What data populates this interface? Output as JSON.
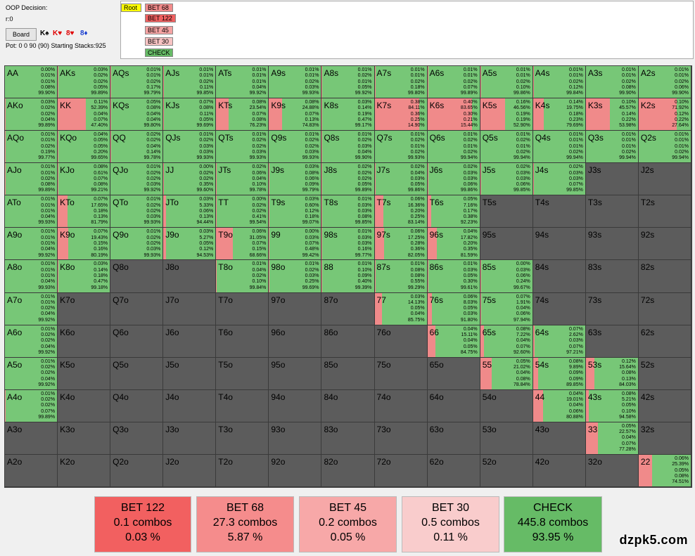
{
  "info": {
    "decision_label": "OOP Decision:",
    "node_label": "r:0",
    "board_button": "Board",
    "board_cards": [
      {
        "text": "K♠",
        "color": "#000000"
      },
      {
        "text": "K♥",
        "color": "#e00000"
      },
      {
        "text": "8♥",
        "color": "#e00000"
      },
      {
        "text": "8♦",
        "color": "#1a3fd0"
      }
    ],
    "pot_line": "Pot: 0 0 90 (90) Starting Stacks:925"
  },
  "tree": [
    {
      "label": "Root",
      "bg": "#ffff00"
    },
    {
      "label": "BET 68",
      "bg": "#f28b8b"
    },
    {
      "label": "BET 122",
      "bg": "#f06060"
    },
    {
      "label": "BET 45",
      "bg": "#f5a3a3"
    },
    {
      "label": "BET 30",
      "bg": "#f8c4c4"
    },
    {
      "label": "CHECK",
      "bg": "#66bb66"
    }
  ],
  "colors": {
    "check": "#77c777",
    "bet68": "#f08a8a",
    "inactive": "#5c5c5c"
  },
  "grid_hands": [
    [
      "AA",
      "AKs",
      "AQs",
      "AJs",
      "ATs",
      "A9s",
      "A8s",
      "A7s",
      "A6s",
      "A5s",
      "A4s",
      "A3s",
      "A2s"
    ],
    [
      "AKo",
      "KK",
      "KQs",
      "KJs",
      "KTs",
      "K9s",
      "K8s",
      "K7s",
      "K6s",
      "K5s",
      "K4s",
      "K3s",
      "K2s"
    ],
    [
      "AQo",
      "KQo",
      "QQ",
      "QJs",
      "QTs",
      "Q9s",
      "Q8s",
      "Q7s",
      "Q6s",
      "Q5s",
      "Q4s",
      "Q3s",
      "Q2s"
    ],
    [
      "AJo",
      "KJo",
      "QJo",
      "JJ",
      "JTs",
      "J9s",
      "J8s",
      "J7s",
      "J6s",
      "J5s",
      "J4s",
      "J3s",
      "J2s"
    ],
    [
      "ATo",
      "KTo",
      "QTo",
      "JTo",
      "TT",
      "T9s",
      "T8s",
      "T7s",
      "T6s",
      "T5s",
      "T4s",
      "T3s",
      "T2s"
    ],
    [
      "A9o",
      "K9o",
      "Q9o",
      "J9o",
      "T9o",
      "99",
      "98s",
      "97s",
      "96s",
      "95s",
      "94s",
      "93s",
      "92s"
    ],
    [
      "A8o",
      "K8o",
      "Q8o",
      "J8o",
      "T8o",
      "98o",
      "88",
      "87s",
      "86s",
      "85s",
      "84s",
      "83s",
      "82s"
    ],
    [
      "A7o",
      "K7o",
      "Q7o",
      "J7o",
      "T7o",
      "97o",
      "87o",
      "77",
      "76s",
      "75s",
      "74s",
      "73s",
      "72s"
    ],
    [
      "A6o",
      "K6o",
      "Q6o",
      "J6o",
      "T6o",
      "96o",
      "86o",
      "76o",
      "66",
      "65s",
      "64s",
      "63s",
      "62s"
    ],
    [
      "A5o",
      "K5o",
      "Q5o",
      "J5o",
      "T5o",
      "95o",
      "85o",
      "75o",
      "65o",
      "55",
      "54s",
      "53s",
      "52s"
    ],
    [
      "A4o",
      "K4o",
      "Q4o",
      "J4o",
      "T4o",
      "94o",
      "84o",
      "74o",
      "64o",
      "54o",
      "44",
      "43s",
      "42s"
    ],
    [
      "A3o",
      "K3o",
      "Q3o",
      "J3o",
      "T3o",
      "93o",
      "83o",
      "73o",
      "63o",
      "53o",
      "43o",
      "33",
      "32s"
    ],
    [
      "A2o",
      "K2o",
      "Q2o",
      "J2o",
      "T2o",
      "92o",
      "82o",
      "72o",
      "62o",
      "52o",
      "42o",
      "32o",
      "22"
    ]
  ],
  "hand_stats": {
    "AA": {
      "stats": [
        "0.00%",
        "0.01%",
        "0.01%",
        "0.08%",
        "99.90%"
      ],
      "check": 0.999
    },
    "AKs": {
      "stats": [
        "0.03%",
        "0.02%",
        "0.02%",
        "0.05%",
        "99.89%"
      ],
      "check": 0.9989
    },
    "AQs": {
      "stats": [
        "0.01%",
        "0.01%",
        "0.02%",
        "0.17%",
        "99.79%"
      ],
      "check": 0.9979
    },
    "AJs": {
      "stats": [
        "0.01%",
        "0.01%",
        "0.02%",
        "0.11%",
        "99.85%"
      ],
      "check": 0.9985
    },
    "ATs": {
      "stats": [
        "0.01%",
        "0.01%",
        "0.01%",
        "0.04%",
        "99.92%"
      ],
      "check": 0.9992
    },
    "A9s": {
      "stats": [
        "0.01%",
        "0.01%",
        "0.02%",
        "0.03%",
        "99.93%"
      ],
      "check": 0.9993
    },
    "A8s": {
      "stats": [
        "0.01%",
        "0.02%",
        "0.01%",
        "0.05%",
        "99.92%"
      ],
      "check": 0.9992
    },
    "A7s": {
      "stats": [
        "0.01%",
        "0.01%",
        "0.02%",
        "0.18%",
        "99.80%"
      ],
      "check": 0.998
    },
    "A6s": {
      "stats": [
        "0.01%",
        "0.01%",
        "0.02%",
        "0.07%",
        "99.89%"
      ],
      "check": 0.9989
    },
    "A5s": {
      "stats": [
        "0.01%",
        "0.01%",
        "0.02%",
        "0.10%",
        "99.86%"
      ],
      "check": 0.9986
    },
    "A4s": {
      "stats": [
        "0.01%",
        "0.01%",
        "0.02%",
        "0.12%",
        "99.84%"
      ],
      "check": 0.9984
    },
    "A3s": {
      "stats": [
        "0.01%",
        "0.01%",
        "0.02%",
        "0.08%",
        "99.90%"
      ],
      "check": 0.999
    },
    "A2s": {
      "stats": [
        "0.01%",
        "0.01%",
        "0.02%",
        "0.06%",
        "99.90%"
      ],
      "check": 0.999
    },
    "AKo": {
      "stats": [
        "0.03%",
        "0.02%",
        "0.02%",
        "0.04%",
        "99.89%"
      ],
      "check": 0.9989
    },
    "KK": {
      "stats": [
        "0.11%",
        "52.39%",
        "0.04%",
        "0.07%",
        "47.40%"
      ],
      "check": 0.474
    },
    "KQs": {
      "stats": [
        "0.05%",
        "0.08%",
        "0.04%",
        "0.04%",
        "99.80%"
      ],
      "check": 0.998
    },
    "KJs": {
      "stats": [
        "0.07%",
        "0.08%",
        "0.11%",
        "0.05%",
        "99.69%"
      ],
      "check": 0.9969
    },
    "KTs": {
      "stats": [
        "0.08%",
        "23.54%",
        "0.07%",
        "0.08%",
        "76.23%"
      ],
      "check": 0.7623
    },
    "K9s": {
      "stats": [
        "0.08%",
        "24.88%",
        "0.07%",
        "0.13%",
        "74.83%"
      ],
      "check": 0.7483
    },
    "K8s": {
      "stats": [
        "0.03%",
        "0.14%",
        "0.19%",
        "0.47%",
        "99.17%"
      ],
      "check": 0.9917
    },
    "K7s": {
      "stats": [
        "0.38%",
        "84.11%",
        "0.36%",
        "0.25%",
        "14.90%"
      ],
      "check": 0.149
    },
    "K6s": {
      "stats": [
        "0.40%",
        "83.65%",
        "0.30%",
        "0.21%",
        "15.44%"
      ],
      "check": 0.1544
    },
    "K5s": {
      "stats": [
        "0.16%",
        "46.56%",
        "0.19%",
        "0.19%",
        "52.90%"
      ],
      "check": 0.529
    },
    "K4s": {
      "stats": [
        "0.14%",
        "19.75%",
        "0.18%",
        "0.23%",
        "79.69%"
      ],
      "check": 0.7969
    },
    "K3s": {
      "stats": [
        "0.10%",
        "45.57%",
        "0.14%",
        "0.22%",
        "53.98%"
      ],
      "check": 0.5398
    },
    "K2s": {
      "stats": [
        "0.10%",
        "71.92%",
        "0.12%",
        "0.22%",
        "27.64%"
      ],
      "check": 0.2764
    },
    "AQo": {
      "stats": [
        "0.01%",
        "0.01%",
        "0.02%",
        "0.19%",
        "99.77%"
      ],
      "check": 0.9977
    },
    "KQo": {
      "stats": [
        "0.04%",
        "0.05%",
        "0.05%",
        "0.20%",
        "99.65%"
      ],
      "check": 0.9965
    },
    "QQ": {
      "stats": [
        "0.02%",
        "0.02%",
        "0.04%",
        "0.14%",
        "99.78%"
      ],
      "check": 0.9978
    },
    "QJs": {
      "stats": [
        "0.01%",
        "0.02%",
        "0.03%",
        "0.03%",
        "99.93%"
      ],
      "check": 0.9993
    },
    "QTs": {
      "stats": [
        "0.01%",
        "0.02%",
        "0.02%",
        "0.03%",
        "99.93%"
      ],
      "check": 0.9993
    },
    "Q9s": {
      "stats": [
        "0.01%",
        "0.02%",
        "0.02%",
        "0.03%",
        "99.93%"
      ],
      "check": 0.9993
    },
    "Q8s": {
      "stats": [
        "0.01%",
        "0.02%",
        "0.03%",
        "0.04%",
        "99.90%"
      ],
      "check": 0.999
    },
    "Q7s": {
      "stats": [
        "0.01%",
        "0.02%",
        "0.01%",
        "0.02%",
        "99.93%"
      ],
      "check": 0.9993
    },
    "Q6s": {
      "stats": [
        "0.01%",
        "0.02%",
        "0.01%",
        "0.02%",
        "99.94%"
      ],
      "check": 0.9994
    },
    "Q5s": {
      "stats": [
        "0.01%",
        "0.02%",
        "0.01%",
        "0.02%",
        "99.94%"
      ],
      "check": 0.9994
    },
    "Q4s": {
      "stats": [
        "0.01%",
        "0.01%",
        "0.01%",
        "0.02%",
        "99.94%"
      ],
      "check": 0.9994
    },
    "Q3s": {
      "stats": [
        "0.01%",
        "0.01%",
        "0.01%",
        "0.02%",
        "99.94%"
      ],
      "check": 0.9994
    },
    "Q2s": {
      "stats": [
        "0.01%",
        "0.01%",
        "0.01%",
        "0.02%",
        "99.94%"
      ],
      "check": 0.9994
    },
    "AJo": {
      "stats": [
        "0.01%",
        "0.01%",
        "0.02%",
        "0.08%",
        "99.89%"
      ],
      "check": 0.9989
    },
    "KJo": {
      "stats": [
        "0.08%",
        "0.61%",
        "0.07%",
        "0.08%",
        "99.21%"
      ],
      "check": 0.9921
    },
    "QJo": {
      "stats": [
        "0.01%",
        "0.02%",
        "0.02%",
        "0.03%",
        "99.92%"
      ],
      "check": 0.9992
    },
    "JJ": {
      "stats": [
        "0.00%",
        "0.02%",
        "0.02%",
        "0.35%",
        "99.60%"
      ],
      "check": 0.996
    },
    "JTs": {
      "stats": [
        "0.02%",
        "0.06%",
        "0.04%",
        "0.10%",
        "99.78%"
      ],
      "check": 0.9978
    },
    "J9s": {
      "stats": [
        "0.03%",
        "0.08%",
        "0.06%",
        "0.09%",
        "99.79%"
      ],
      "check": 0.9979
    },
    "J8s": {
      "stats": [
        "0.02%",
        "0.02%",
        "0.02%",
        "0.05%",
        "99.89%"
      ],
      "check": 0.9989
    },
    "J7s": {
      "stats": [
        "0.02%",
        "0.04%",
        "0.03%",
        "0.05%",
        "99.86%"
      ],
      "check": 0.9986
    },
    "J6s": {
      "stats": [
        "0.02%",
        "0.03%",
        "0.03%",
        "0.06%",
        "99.86%"
      ],
      "check": 0.9986
    },
    "J5s": {
      "stats": [
        "0.02%",
        "0.03%",
        "0.03%",
        "0.06%",
        "99.85%"
      ],
      "check": 0.9985
    },
    "J4s": {
      "stats": [
        "0.02%",
        "0.03%",
        "0.03%",
        "0.07%",
        "99.85%"
      ],
      "check": 0.9985
    },
    "ATo": {
      "stats": [
        "0.01%",
        "0.01%",
        "0.01%",
        "0.04%",
        "99.93%"
      ],
      "check": 0.9993
    },
    "KTo": {
      "stats": [
        "0.07%",
        "17.65%",
        "0.18%",
        "0.13%",
        "81.79%"
      ],
      "check": 0.8179
    },
    "QTo": {
      "stats": [
        "0.01%",
        "0.02%",
        "0.02%",
        "0.03%",
        "99.93%"
      ],
      "check": 0.9993
    },
    "JTo": {
      "stats": [
        "0.03%",
        "5.33%",
        "0.06%",
        "0.13%",
        "94.44%"
      ],
      "check": 0.9444
    },
    "TT": {
      "stats": [
        "0.00%",
        "0.02%",
        "0.02%",
        "0.41%",
        "99.54%"
      ],
      "check": 0.9954
    },
    "T9s": {
      "stats": [
        "0.03%",
        "0.60%",
        "0.12%",
        "0.18%",
        "99.07%"
      ],
      "check": 0.9907
    },
    "T8s": {
      "stats": [
        "0.01%",
        "0.03%",
        "0.03%",
        "0.08%",
        "99.85%"
      ],
      "check": 0.9985
    },
    "T7s": {
      "stats": [
        "0.06%",
        "16.36%",
        "0.20%",
        "0.25%",
        "83.14%"
      ],
      "check": 0.8314
    },
    "T6s": {
      "stats": [
        "0.05%",
        "7.16%",
        "0.17%",
        "0.38%",
        "92.23%"
      ],
      "check": 0.9223
    },
    "A9o": {
      "stats": [
        "0.01%",
        "0.01%",
        "0.01%",
        "0.04%",
        "99.92%"
      ],
      "check": 0.9992
    },
    "K9o": {
      "stats": [
        "0.07%",
        "19.43%",
        "0.15%",
        "0.16%",
        "80.19%"
      ],
      "check": 0.8019
    },
    "Q9o": {
      "stats": [
        "0.01%",
        "0.02%",
        "0.02%",
        "0.03%",
        "99.93%"
      ],
      "check": 0.9993
    },
    "J9o": {
      "stats": [
        "0.03%",
        "5.27%",
        "0.05%",
        "0.12%",
        "94.53%"
      ],
      "check": 0.9453
    },
    "T9o": {
      "stats": [
        "0.06%",
        "31.05%",
        "0.07%",
        "0.15%",
        "68.66%"
      ],
      "check": 0.6866
    },
    "99": {
      "stats": [
        "0.00%",
        "0.03%",
        "0.07%",
        "0.48%",
        "99.42%"
      ],
      "check": 0.9942
    },
    "98s": {
      "stats": [
        "0.01%",
        "0.03%",
        "0.03%",
        "0.16%",
        "99.77%"
      ],
      "check": 0.9977
    },
    "97s": {
      "stats": [
        "0.06%",
        "17.25%",
        "0.28%",
        "0.36%",
        "82.05%"
      ],
      "check": 0.8205
    },
    "96s": {
      "stats": [
        "0.04%",
        "17.82%",
        "0.20%",
        "0.35%",
        "81.59%"
      ],
      "check": 0.8159
    },
    "A8o": {
      "stats": [
        "0.01%",
        "0.01%",
        "0.01%",
        "0.04%",
        "99.93%"
      ],
      "check": 0.9993
    },
    "K8o": {
      "stats": [
        "0.03%",
        "0.14%",
        "0.18%",
        "0.47%",
        "99.18%"
      ],
      "check": 0.9918
    },
    "T8o": {
      "stats": [
        "0.01%",
        "0.04%",
        "0.02%",
        "0.10%",
        "99.84%"
      ],
      "check": 0.9984
    },
    "98o": {
      "stats": [
        "0.01%",
        "0.02%",
        "0.03%",
        "0.25%",
        "99.69%"
      ],
      "check": 0.9969
    },
    "88": {
      "stats": [
        "0.01%",
        "0.10%",
        "0.09%",
        "0.40%",
        "99.39%"
      ],
      "check": 0.9939
    },
    "87s": {
      "stats": [
        "0.01%",
        "0.08%",
        "0.08%",
        "0.55%",
        "99.29%"
      ],
      "check": 0.9929
    },
    "86s": {
      "stats": [
        "0.01%",
        "0.03%",
        "0.05%",
        "0.30%",
        "99.61%"
      ],
      "check": 0.9961
    },
    "85s": {
      "stats": [
        "0.00%",
        "0.03%",
        "0.06%",
        "0.24%",
        "99.67%"
      ],
      "check": 0.9967
    },
    "A7o": {
      "stats": [
        "0.01%",
        "0.01%",
        "0.02%",
        "0.04%",
        "99.92%"
      ],
      "check": 0.9992
    },
    "77": {
      "stats": [
        "0.03%",
        "14.13%",
        "0.05%",
        "0.04%",
        "85.75%"
      ],
      "check": 0.8575
    },
    "76s": {
      "stats": [
        "0.06%",
        "8.03%",
        "0.05%",
        "0.03%",
        "91.80%"
      ],
      "check": 0.918
    },
    "75s": {
      "stats": [
        "0.07%",
        "1.91%",
        "0.04%",
        "0.06%",
        "97.94%"
      ],
      "check": 0.9794
    },
    "A6o": {
      "stats": [
        "0.01%",
        "0.02%",
        "0.02%",
        "0.04%",
        "99.92%"
      ],
      "check": 0.9992
    },
    "66": {
      "stats": [
        "0.04%",
        "15.11%",
        "0.04%",
        "0.05%",
        "84.75%"
      ],
      "check": 0.8475
    },
    "65s": {
      "stats": [
        "0.08%",
        "7.22%",
        "0.04%",
        "0.07%",
        "92.60%"
      ],
      "check": 0.926
    },
    "64s": {
      "stats": [
        "0.07%",
        "2.62%",
        "0.03%",
        "0.07%",
        "97.21%"
      ],
      "check": 0.9721
    },
    "A5o": {
      "stats": [
        "0.01%",
        "0.02%",
        "0.02%",
        "0.04%",
        "99.92%"
      ],
      "check": 0.9992
    },
    "55": {
      "stats": [
        "0.05%",
        "21.02%",
        "0.04%",
        "0.08%",
        "78.84%"
      ],
      "check": 0.7884
    },
    "54s": {
      "stats": [
        "0.08%",
        "9.89%",
        "0.09%",
        "0.09%",
        "89.85%"
      ],
      "check": 0.8985
    },
    "53s": {
      "stats": [
        "0.12%",
        "15.64%",
        "0.08%",
        "0.13%",
        "84.03%"
      ],
      "check": 0.8403
    },
    "A4o": {
      "stats": [
        "0.01%",
        "0.02%",
        "0.02%",
        "0.07%",
        "99.89%"
      ],
      "check": 0.9989
    },
    "44": {
      "stats": [
        "0.04%",
        "19.01%",
        "0.04%",
        "0.06%",
        "80.88%"
      ],
      "check": 0.8088
    },
    "43s": {
      "stats": [
        "0.08%",
        "5.21%",
        "0.05%",
        "0.10%",
        "94.58%"
      ],
      "check": 0.9458
    },
    "33": {
      "stats": [
        "0.05%",
        "22.57%",
        "0.04%",
        "0.07%",
        "77.28%"
      ],
      "check": 0.7728
    },
    "22": {
      "stats": [
        "0.06%",
        "25.39%",
        "0.05%",
        "0.08%",
        "74.51%"
      ],
      "check": 0.7451
    }
  },
  "summary": [
    {
      "name": "BET 122",
      "combos": "0.1 combos",
      "pct": "0.03 %",
      "bg": "#f26060"
    },
    {
      "name": "BET 68",
      "combos": "27.3 combos",
      "pct": "5.87 %",
      "bg": "#f58c8c"
    },
    {
      "name": "BET 45",
      "combos": "0.2 combos",
      "pct": "0.05 %",
      "bg": "#f7a8a8"
    },
    {
      "name": "BET 30",
      "combos": "0.5 combos",
      "pct": "0.11 %",
      "bg": "#f9cccc"
    },
    {
      "name": "CHECK",
      "combos": "445.8 combos",
      "pct": "93.95 %",
      "bg": "#66bb66"
    }
  ],
  "watermark": "dzpk5.com"
}
